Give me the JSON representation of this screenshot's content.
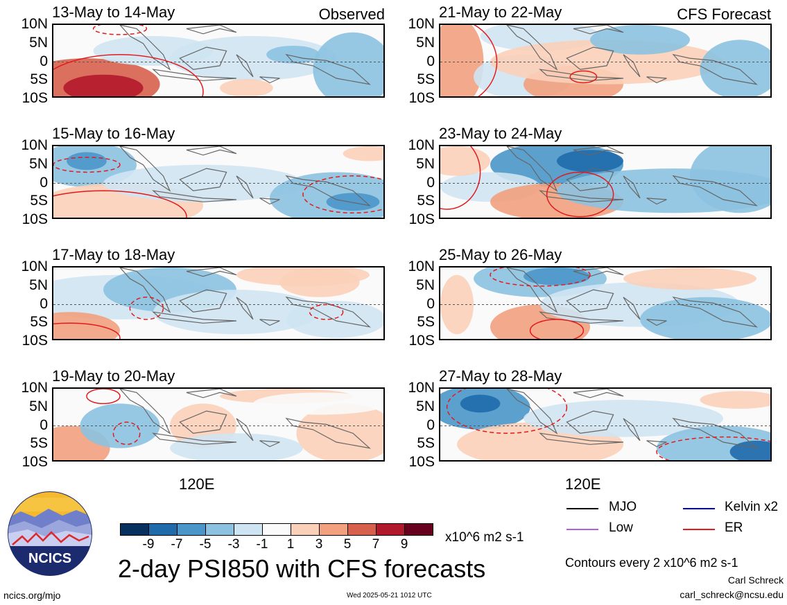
{
  "observed_label": "Observed",
  "forecast_label": "CFS Forecast",
  "lat_labels": [
    "10N",
    "5N",
    "0",
    "5S",
    "10S"
  ],
  "lon_label": "120E",
  "panels_left": [
    {
      "title": "13-May to 14-May"
    },
    {
      "title": "15-May to 16-May"
    },
    {
      "title": "17-May to 18-May"
    },
    {
      "title": "19-May to 20-May"
    }
  ],
  "panels_right": [
    {
      "title": "21-May to 22-May"
    },
    {
      "title": "23-May to 24-May"
    },
    {
      "title": "25-May to 26-May"
    },
    {
      "title": "27-May to 28-May"
    }
  ],
  "colorbar": {
    "labels": [
      "-9",
      "-7",
      "-5",
      "-3",
      "-1",
      "1",
      "3",
      "5",
      "7",
      "9"
    ],
    "colors": [
      "#08305e",
      "#1f6aab",
      "#4a96c9",
      "#8cc2e0",
      "#cfe4f2",
      "#fafafa",
      "#fbd0b9",
      "#f2a07e",
      "#d7604d",
      "#b2182b",
      "#67001f"
    ],
    "units": "x10^6 m2 s-1"
  },
  "main_title": "2-day PSI850 with CFS forecasts",
  "legend": [
    {
      "label": "MJO",
      "color": "#000000"
    },
    {
      "label": "Kelvin x2",
      "color": "#0000cc"
    },
    {
      "label": "Low",
      "color": "#b05fe0"
    },
    {
      "label": "ER",
      "color": "#e31a1c"
    }
  ],
  "contour_note": "Contours every 2 x10^6 m2 s-1",
  "author": "Carl Schreck",
  "email": "carl_schreck@ncsu.edu",
  "website": "ncics.org/mjo",
  "timestamp": "Wed 2025-05-21 1012 UTC",
  "logo_text": "NCICS",
  "chart_data": [
    {
      "type": "heatmap",
      "title": "13-May to 14-May",
      "corner_label": "Observed",
      "ylim": [
        "10S",
        "10N"
      ],
      "xtick": "120E",
      "field": "PSI850 anomaly",
      "units": "x10^6 m2 s-1"
    },
    {
      "type": "heatmap",
      "title": "15-May to 16-May",
      "ylim": [
        "10S",
        "10N"
      ],
      "xtick": "120E",
      "field": "PSI850 anomaly"
    },
    {
      "type": "heatmap",
      "title": "17-May to 18-May",
      "ylim": [
        "10S",
        "10N"
      ],
      "xtick": "120E",
      "field": "PSI850 anomaly"
    },
    {
      "type": "heatmap",
      "title": "19-May to 20-May",
      "ylim": [
        "10S",
        "10N"
      ],
      "xtick": "120E",
      "field": "PSI850 anomaly"
    },
    {
      "type": "heatmap",
      "title": "21-May to 22-May",
      "corner_label": "CFS Forecast",
      "ylim": [
        "10S",
        "10N"
      ],
      "xtick": "120E",
      "field": "PSI850 anomaly"
    },
    {
      "type": "heatmap",
      "title": "23-May to 24-May",
      "ylim": [
        "10S",
        "10N"
      ],
      "xtick": "120E",
      "field": "PSI850 anomaly"
    },
    {
      "type": "heatmap",
      "title": "25-May to 26-May",
      "ylim": [
        "10S",
        "10N"
      ],
      "xtick": "120E",
      "field": "PSI850 anomaly"
    },
    {
      "type": "heatmap",
      "title": "27-May to 28-May",
      "ylim": [
        "10S",
        "10N"
      ],
      "xtick": "120E",
      "field": "PSI850 anomaly"
    }
  ]
}
